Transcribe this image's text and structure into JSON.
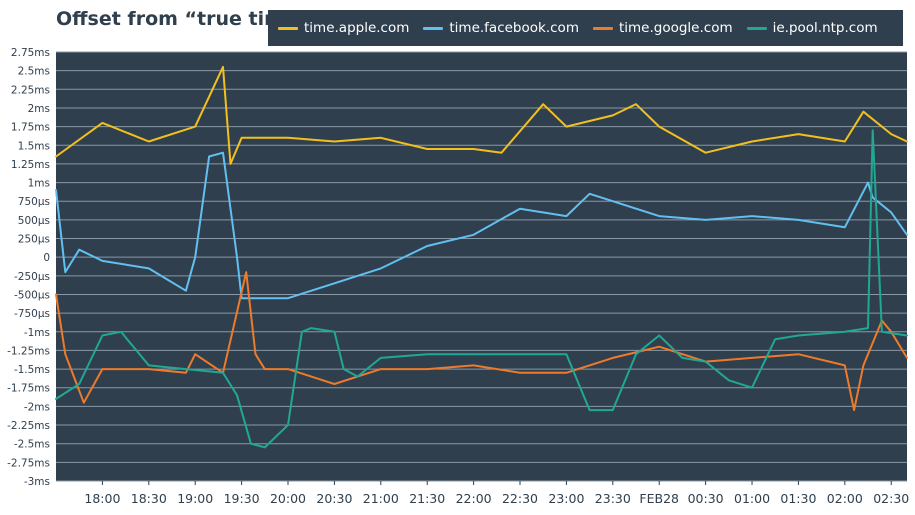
{
  "colors": {
    "plot_background": "#2f3f4d",
    "grid": "#8a99a5",
    "text": "#2f3f4d",
    "legend_text": "#ffffff"
  },
  "chart_data": {
    "type": "line",
    "title": "Offset from “true time”",
    "xlabel": "",
    "ylabel": "",
    "ylim_ms": [
      -3.0,
      2.75
    ],
    "x_range_hours": [
      17.5,
      26.67
    ],
    "grid": true,
    "legend_position": "top",
    "y_ticks": [
      {
        "value": 2.75,
        "label": "2.75ms"
      },
      {
        "value": 2.5,
        "label": "2.5ms"
      },
      {
        "value": 2.25,
        "label": "2.25ms"
      },
      {
        "value": 2.0,
        "label": "2ms"
      },
      {
        "value": 1.75,
        "label": "1.75ms"
      },
      {
        "value": 1.5,
        "label": "1.5ms"
      },
      {
        "value": 1.25,
        "label": "1.25ms"
      },
      {
        "value": 1.0,
        "label": "1ms"
      },
      {
        "value": 0.75,
        "label": "750µs"
      },
      {
        "value": 0.5,
        "label": "500µs"
      },
      {
        "value": 0.25,
        "label": "250µs"
      },
      {
        "value": 0.0,
        "label": "0"
      },
      {
        "value": -0.25,
        "label": "-250µs"
      },
      {
        "value": -0.5,
        "label": "-500µs"
      },
      {
        "value": -0.75,
        "label": "-750µs"
      },
      {
        "value": -1.0,
        "label": "-1ms"
      },
      {
        "value": -1.25,
        "label": "-1.25ms"
      },
      {
        "value": -1.5,
        "label": "-1.5ms"
      },
      {
        "value": -1.75,
        "label": "-1.75ms"
      },
      {
        "value": -2.0,
        "label": "-2ms"
      },
      {
        "value": -2.25,
        "label": "-2.25ms"
      },
      {
        "value": -2.5,
        "label": "-2.5ms"
      },
      {
        "value": -2.75,
        "label": "-2.75ms"
      },
      {
        "value": -3.0,
        "label": "-3ms"
      }
    ],
    "x_ticks": [
      {
        "value": 18.0,
        "label": "18:00"
      },
      {
        "value": 18.5,
        "label": "18:30"
      },
      {
        "value": 19.0,
        "label": "19:00"
      },
      {
        "value": 19.5,
        "label": "19:30"
      },
      {
        "value": 20.0,
        "label": "20:00"
      },
      {
        "value": 20.5,
        "label": "20:30"
      },
      {
        "value": 21.0,
        "label": "21:00"
      },
      {
        "value": 21.5,
        "label": "21:30"
      },
      {
        "value": 22.0,
        "label": "22:00"
      },
      {
        "value": 22.5,
        "label": "22:30"
      },
      {
        "value": 23.0,
        "label": "23:00"
      },
      {
        "value": 23.5,
        "label": "23:30"
      },
      {
        "value": 24.0,
        "label": "FEB28"
      },
      {
        "value": 24.5,
        "label": "00:30"
      },
      {
        "value": 25.0,
        "label": "01:00"
      },
      {
        "value": 25.5,
        "label": "01:30"
      },
      {
        "value": 26.0,
        "label": "02:00"
      },
      {
        "value": 26.5,
        "label": "02:30"
      }
    ],
    "series": [
      {
        "name": "time.apple.com",
        "color": "#f2c01e",
        "x": [
          17.5,
          18.0,
          18.5,
          19.0,
          19.3,
          19.38,
          19.5,
          20.0,
          20.5,
          21.0,
          21.5,
          22.0,
          22.3,
          22.75,
          23.0,
          23.5,
          23.75,
          24.0,
          24.5,
          25.0,
          25.5,
          26.0,
          26.2,
          26.5,
          26.67
        ],
        "y": [
          1.35,
          1.8,
          1.55,
          1.75,
          2.55,
          1.25,
          1.6,
          1.6,
          1.55,
          1.6,
          1.45,
          1.45,
          1.4,
          2.05,
          1.75,
          1.9,
          2.05,
          1.75,
          1.4,
          1.55,
          1.65,
          1.55,
          1.95,
          1.65,
          1.55
        ]
      },
      {
        "name": "time.facebook.com",
        "color": "#62c0ef",
        "x": [
          17.5,
          17.6,
          17.75,
          18.0,
          18.5,
          18.9,
          19.0,
          19.15,
          19.3,
          19.45,
          19.5,
          20.0,
          20.5,
          21.0,
          21.5,
          22.0,
          22.5,
          23.0,
          23.25,
          23.5,
          24.0,
          24.5,
          25.0,
          25.5,
          26.0,
          26.25,
          26.3,
          26.5,
          26.67
        ],
        "y": [
          0.9,
          -0.2,
          0.1,
          -0.05,
          -0.15,
          -0.45,
          0.0,
          1.35,
          1.4,
          0.0,
          -0.55,
          -0.55,
          -0.35,
          -0.15,
          0.15,
          0.3,
          0.65,
          0.55,
          0.85,
          0.75,
          0.55,
          0.5,
          0.55,
          0.5,
          0.4,
          1.0,
          0.8,
          0.6,
          0.3
        ]
      },
      {
        "name": "time.google.com",
        "color": "#ee7a2c",
        "x": [
          17.5,
          17.6,
          17.8,
          18.0,
          18.5,
          18.9,
          19.0,
          19.3,
          19.55,
          19.65,
          19.75,
          20.0,
          20.5,
          21.0,
          21.5,
          22.0,
          22.5,
          23.0,
          23.5,
          24.0,
          24.5,
          25.0,
          25.5,
          26.0,
          26.1,
          26.2,
          26.4,
          26.5,
          26.67
        ],
        "y": [
          -0.5,
          -1.3,
          -1.95,
          -1.5,
          -1.5,
          -1.55,
          -1.3,
          -1.55,
          -0.2,
          -1.3,
          -1.5,
          -1.5,
          -1.7,
          -1.5,
          -1.5,
          -1.45,
          -1.55,
          -1.55,
          -1.35,
          -1.2,
          -1.4,
          -1.35,
          -1.3,
          -1.45,
          -2.05,
          -1.45,
          -0.85,
          -1.0,
          -1.35
        ]
      },
      {
        "name": "ie.pool.ntp.com",
        "color": "#20a894",
        "x": [
          17.5,
          17.75,
          18.0,
          18.2,
          18.5,
          18.9,
          19.3,
          19.45,
          19.6,
          19.75,
          20.0,
          20.15,
          20.25,
          20.5,
          20.6,
          20.75,
          21.0,
          21.5,
          22.0,
          22.5,
          23.0,
          23.25,
          23.5,
          23.75,
          24.0,
          24.25,
          24.5,
          24.75,
          25.0,
          25.25,
          25.5,
          26.0,
          26.25,
          26.3,
          26.4,
          26.67
        ],
        "y": [
          -1.9,
          -1.7,
          -1.05,
          -1.0,
          -1.45,
          -1.5,
          -1.55,
          -1.85,
          -2.5,
          -2.55,
          -2.25,
          -1.0,
          -0.95,
          -1.0,
          -1.5,
          -1.6,
          -1.35,
          -1.3,
          -1.3,
          -1.3,
          -1.3,
          -2.05,
          -2.05,
          -1.3,
          -1.05,
          -1.35,
          -1.4,
          -1.65,
          -1.75,
          -1.1,
          -1.05,
          -1.0,
          -0.95,
          1.7,
          -1.0,
          -1.05
        ]
      }
    ]
  }
}
